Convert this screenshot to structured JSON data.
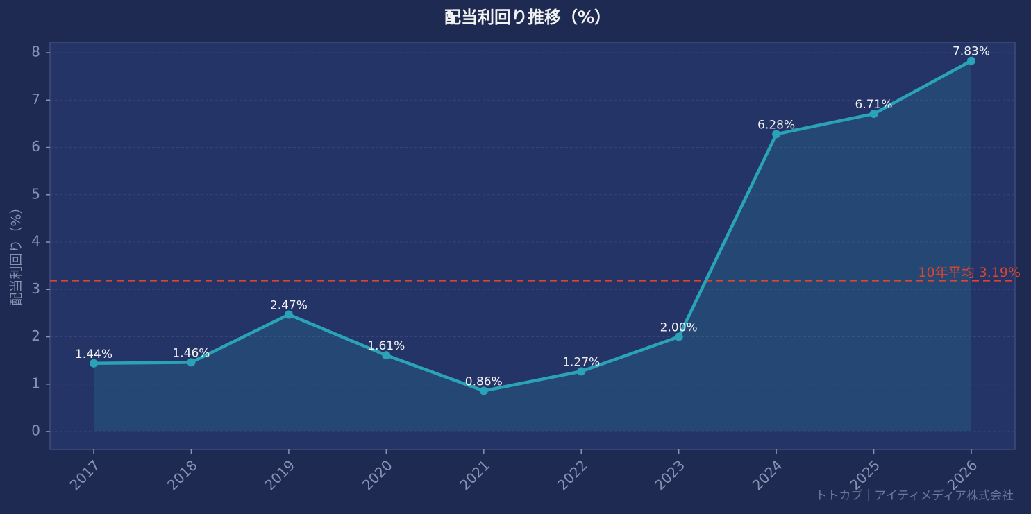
{
  "chart_data": {
    "type": "line",
    "title": "配当利回り推移（%）",
    "y_label": "配当利回り（%）",
    "watermark": "トトカブ｜アイティメディア株式会社",
    "categories": [
      "2017",
      "2018",
      "2019",
      "2020",
      "2021",
      "2022",
      "2023",
      "2024",
      "2025",
      "2026"
    ],
    "values": [
      1.44,
      1.46,
      2.47,
      1.61,
      0.86,
      1.27,
      2.0,
      6.28,
      6.71,
      7.83
    ],
    "value_labels": [
      "1.44%",
      "1.46%",
      "2.47%",
      "1.61%",
      "0.86%",
      "1.27%",
      "2.00%",
      "6.28%",
      "6.71%",
      "7.83%"
    ],
    "color": "#2aa3b8",
    "ylim": [
      -0.38,
      8.22
    ],
    "yticks": [
      0,
      1,
      2,
      3,
      4,
      5,
      6,
      7,
      8
    ],
    "grid": true,
    "reference_line": {
      "value": 3.19,
      "label": "10年平均 3.19%",
      "color": "#d9452f"
    }
  }
}
